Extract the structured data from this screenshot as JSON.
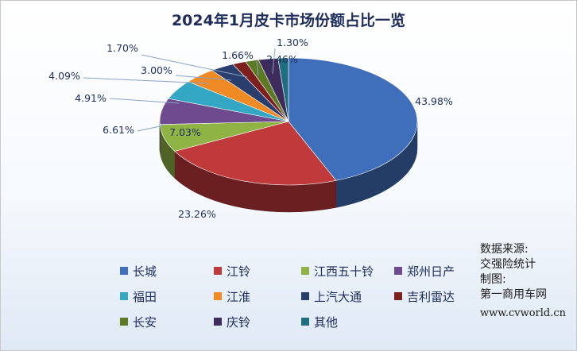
{
  "chart_data": {
    "type": "pie",
    "title": "2024年1月皮卡市场份额占比一览",
    "slices": [
      {
        "label": "长城",
        "value": 43.98,
        "display": "43.98%",
        "color": "#3f6fba"
      },
      {
        "label": "江铃",
        "value": 23.26,
        "display": "23.26%",
        "color": "#c0393b"
      },
      {
        "label": "江西五十铃",
        "value": 7.03,
        "display": "7.03%",
        "color": "#8fb445"
      },
      {
        "label": "郑州日产",
        "value": 6.61,
        "display": "6.61%",
        "color": "#6e4a8e"
      },
      {
        "label": "福田",
        "value": 4.91,
        "display": "4.91%",
        "color": "#33a7c3"
      },
      {
        "label": "江淮",
        "value": 4.09,
        "display": "4.09%",
        "color": "#ef8a25"
      },
      {
        "label": "上汽大通",
        "value": 3.0,
        "display": "3.00%",
        "color": "#2a3e6e"
      },
      {
        "label": "吉利雷达",
        "value": 1.7,
        "display": "1.70%",
        "color": "#7e1f1f"
      },
      {
        "label": "长安",
        "value": 1.66,
        "display": "1.66%",
        "color": "#5c7a24"
      },
      {
        "label": "庆铃",
        "value": 2.46,
        "display": "2.46%",
        "color": "#3e2c5c"
      },
      {
        "label": "其他",
        "value": 1.3,
        "display": "1.30%",
        "color": "#1f6f81"
      }
    ],
    "legend_position": "bottom"
  },
  "source": {
    "line1": "数据来源:",
    "line2": "交强险统计",
    "line3": "制图:",
    "line4": "第一商用车网",
    "url": "www.cvworld.cn"
  }
}
